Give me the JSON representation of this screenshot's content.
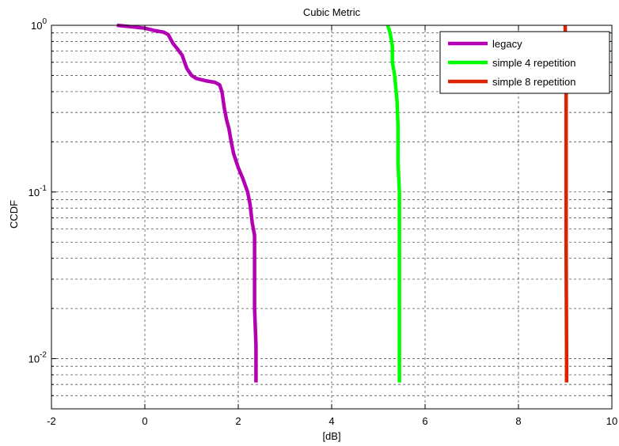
{
  "chart_data": {
    "type": "line",
    "title": "Cubic Metric",
    "xlabel": "[dB]",
    "ylabel": "CCDF",
    "xlim": [
      -2,
      10
    ],
    "ylim": [
      0.005,
      1
    ],
    "y_scale": "log",
    "grid": true,
    "legend_position": "top-right",
    "x_ticks": [
      -2,
      0,
      2,
      4,
      6,
      8,
      10
    ],
    "y_ticks": [
      {
        "base": "10",
        "exp": "-2",
        "value": 0.01
      },
      {
        "base": "10",
        "exp": "-1",
        "value": 0.1
      },
      {
        "base": "10",
        "exp": "0",
        "value": 1
      }
    ],
    "series": [
      {
        "name": "legacy",
        "color": "#b400b4",
        "points": [
          [
            -0.6,
            1.0
          ],
          [
            -0.3,
            0.98
          ],
          [
            0.0,
            0.96
          ],
          [
            0.2,
            0.93
          ],
          [
            0.4,
            0.91
          ],
          [
            0.5,
            0.88
          ],
          [
            0.55,
            0.83
          ],
          [
            0.6,
            0.78
          ],
          [
            0.7,
            0.72
          ],
          [
            0.8,
            0.66
          ],
          [
            0.85,
            0.6
          ],
          [
            0.9,
            0.55
          ],
          [
            1.0,
            0.5
          ],
          [
            1.1,
            0.48
          ],
          [
            1.3,
            0.465
          ],
          [
            1.5,
            0.455
          ],
          [
            1.6,
            0.44
          ],
          [
            1.65,
            0.4
          ],
          [
            1.7,
            0.32
          ],
          [
            1.75,
            0.27
          ],
          [
            1.8,
            0.24
          ],
          [
            1.85,
            0.2
          ],
          [
            1.9,
            0.17
          ],
          [
            2.0,
            0.14
          ],
          [
            2.1,
            0.12
          ],
          [
            2.2,
            0.1
          ],
          [
            2.25,
            0.085
          ],
          [
            2.3,
            0.065
          ],
          [
            2.35,
            0.055
          ],
          [
            2.35,
            0.03
          ],
          [
            2.35,
            0.02
          ],
          [
            2.38,
            0.012
          ],
          [
            2.38,
            0.0072
          ]
        ]
      },
      {
        "name": "simple 4 repetition",
        "color": "#00ff00",
        "points": [
          [
            5.2,
            1.0
          ],
          [
            5.25,
            0.9
          ],
          [
            5.3,
            0.75
          ],
          [
            5.3,
            0.6
          ],
          [
            5.35,
            0.5
          ],
          [
            5.4,
            0.35
          ],
          [
            5.42,
            0.25
          ],
          [
            5.42,
            0.15
          ],
          [
            5.45,
            0.1
          ],
          [
            5.45,
            0.05
          ],
          [
            5.45,
            0.02
          ],
          [
            5.45,
            0.0072
          ]
        ]
      },
      {
        "name": "simple 8 repetition",
        "color": "#dd2200",
        "points": [
          [
            9.0,
            1.0
          ],
          [
            9.02,
            0.5
          ],
          [
            9.02,
            0.1
          ],
          [
            9.02,
            0.05
          ],
          [
            9.03,
            0.01
          ],
          [
            9.03,
            0.0072
          ]
        ]
      }
    ]
  }
}
